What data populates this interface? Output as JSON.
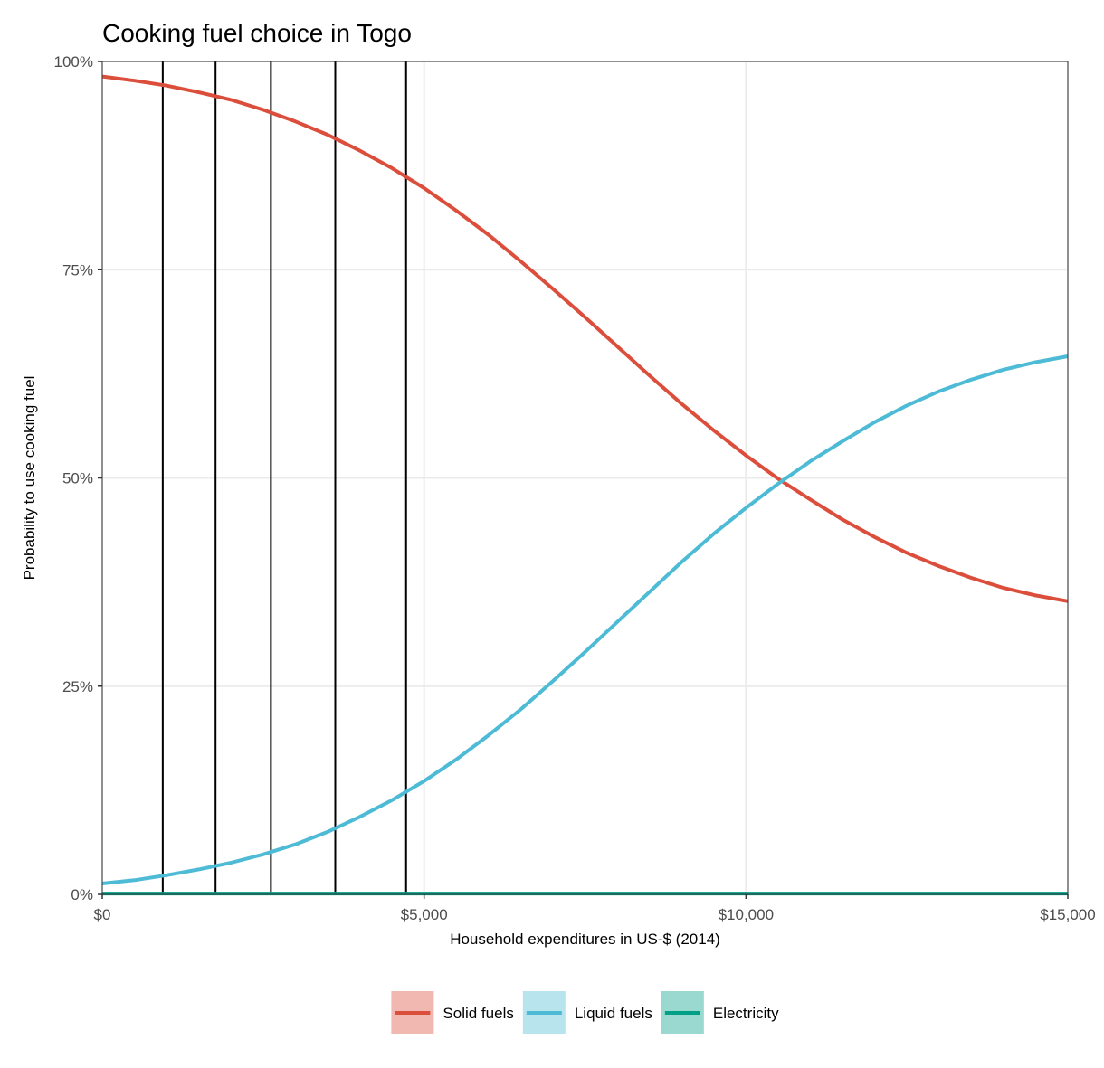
{
  "chart_data": {
    "type": "line",
    "title": "Cooking fuel choice in Togo",
    "xlabel": "Household expenditures in US-$ (2014)",
    "ylabel": "Probability to use cooking fuel",
    "xlim": [
      0,
      15000
    ],
    "ylim": [
      0,
      1
    ],
    "x_ticks": [
      {
        "value": 0,
        "label": "$0"
      },
      {
        "value": 5000,
        "label": "$5,000"
      },
      {
        "value": 10000,
        "label": "$10,000"
      },
      {
        "value": 15000,
        "label": "$15,000"
      }
    ],
    "y_ticks": [
      {
        "value": 0,
        "label": "0%"
      },
      {
        "value": 0.25,
        "label": "25%"
      },
      {
        "value": 0.5,
        "label": "50%"
      },
      {
        "value": 0.75,
        "label": "75%"
      },
      {
        "value": 1,
        "label": "100%"
      }
    ],
    "grid": true,
    "legend_position": "bottom",
    "vertical_lines_x": [
      940,
      1760,
      2620,
      3620,
      4720
    ],
    "x": [
      0,
      500,
      1000,
      1500,
      2000,
      2500,
      3000,
      3500,
      4000,
      4500,
      5000,
      5500,
      6000,
      6500,
      7000,
      7500,
      8000,
      8500,
      9000,
      9500,
      10000,
      10500,
      11000,
      11500,
      12000,
      12500,
      13000,
      13500,
      14000,
      14500,
      15000
    ],
    "series": [
      {
        "name": "Solid fuels",
        "color": "#dc4e3c",
        "values": [
          0.982,
          0.977,
          0.971,
          0.963,
          0.954,
          0.942,
          0.928,
          0.912,
          0.893,
          0.872,
          0.848,
          0.821,
          0.792,
          0.76,
          0.727,
          0.693,
          0.658,
          0.623,
          0.589,
          0.557,
          0.527,
          0.499,
          0.474,
          0.45,
          0.429,
          0.41,
          0.394,
          0.38,
          0.368,
          0.359,
          0.352
        ]
      },
      {
        "name": "Liquid fuels",
        "color": "#4dbbd5",
        "values": [
          0.013,
          0.017,
          0.023,
          0.03,
          0.038,
          0.048,
          0.06,
          0.075,
          0.093,
          0.113,
          0.136,
          0.162,
          0.191,
          0.222,
          0.256,
          0.291,
          0.327,
          0.363,
          0.399,
          0.433,
          0.464,
          0.493,
          0.52,
          0.544,
          0.567,
          0.587,
          0.604,
          0.618,
          0.63,
          0.639,
          0.646
        ]
      },
      {
        "name": "Electricity",
        "color": "#00a087",
        "values": [
          0.001,
          0.001,
          0.001,
          0.001,
          0.001,
          0.001,
          0.001,
          0.001,
          0.001,
          0.001,
          0.001,
          0.001,
          0.001,
          0.001,
          0.001,
          0.001,
          0.001,
          0.001,
          0.001,
          0.001,
          0.001,
          0.001,
          0.001,
          0.001,
          0.001,
          0.001,
          0.001,
          0.001,
          0.001,
          0.001,
          0.001
        ]
      }
    ]
  }
}
